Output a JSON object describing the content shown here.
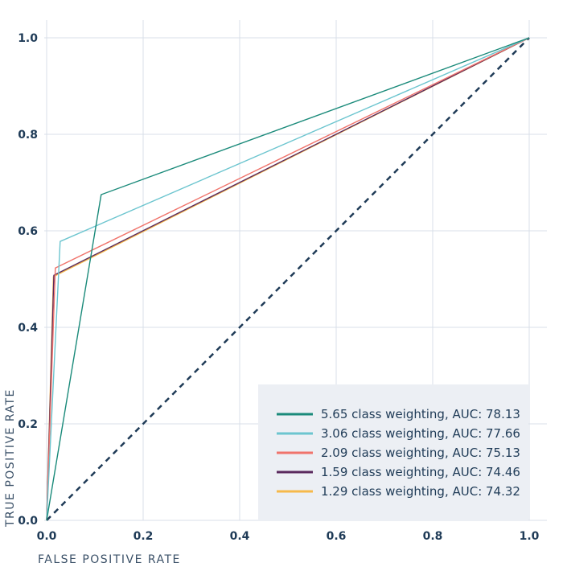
{
  "chart_data": {
    "type": "line",
    "xlabel": "FALSE POSITIVE RATE",
    "ylabel": "TRUE POSITIVE RATE",
    "xlim": [
      0,
      1.0
    ],
    "ylim": [
      0,
      1.0
    ],
    "x_ticks": [
      "0.0",
      "0.2",
      "0.4",
      "0.6",
      "0.8",
      "1.0"
    ],
    "y_ticks": [
      "0.0",
      "0.2",
      "0.4",
      "0.6",
      "0.8",
      "1.0"
    ],
    "grid": true,
    "legend_position": "bottom-right",
    "series": [
      {
        "name": "5.65 class weighting, AUC: 78.13",
        "color": "#1a8a7a",
        "x": [
          0.0,
          0.113,
          1.0
        ],
        "y": [
          0.0,
          0.675,
          1.0
        ]
      },
      {
        "name": "3.06 class weighting, AUC: 77.66",
        "color": "#6cc5cf",
        "x": [
          0.0,
          0.028,
          1.0
        ],
        "y": [
          0.0,
          0.578,
          1.0
        ]
      },
      {
        "name": "2.09 class weighting, AUC: 75.13",
        "color": "#f0736b",
        "x": [
          0.0,
          0.018,
          1.0
        ],
        "y": [
          0.0,
          0.523,
          1.0
        ]
      },
      {
        "name": "1.59 class weighting, AUC: 74.46",
        "color": "#5a2a5e",
        "x": [
          0.0,
          0.015,
          1.0
        ],
        "y": [
          0.0,
          0.508,
          1.0
        ]
      },
      {
        "name": "1.29 class weighting, AUC: 74.32",
        "color": "#f6b94a",
        "x": [
          0.0,
          0.014,
          1.0
        ],
        "y": [
          0.0,
          0.505,
          1.0
        ]
      }
    ],
    "reference_line": {
      "color": "#1f3b57",
      "style": "dashed",
      "x": [
        0.0,
        1.0
      ],
      "y": [
        0.0,
        1.0
      ]
    },
    "legend_background": "#eceff4",
    "grid_color": "#d8dfe8"
  }
}
